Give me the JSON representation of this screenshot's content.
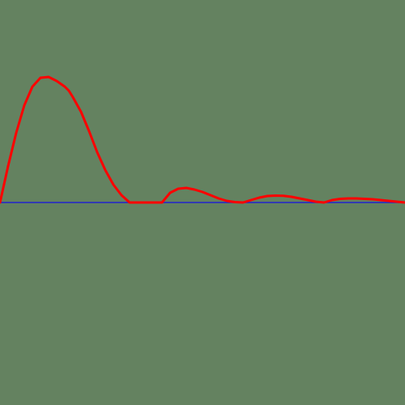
{
  "colors": {
    "background": "#648260",
    "curve": "#ff0000",
    "baseline": "#2222cc"
  },
  "chart_data": {
    "type": "line",
    "title": "",
    "xlabel": "",
    "ylabel": "",
    "grid": false,
    "legend": "none",
    "xlim": [
      0,
      5
    ],
    "ylim": [
      -2.5,
      2.5
    ],
    "baseline": {
      "y": 0
    },
    "series": [
      {
        "x": [
          0,
          0.1,
          0.2,
          0.3,
          0.4,
          0.5,
          0.6,
          0.7,
          0.8,
          0.85,
          0.9,
          1.0,
          1.1,
          1.2,
          1.3,
          1.4,
          1.5,
          1.6,
          1.7,
          1.8,
          1.9,
          2.0,
          2.1,
          2.2,
          2.3,
          2.4,
          2.5,
          2.6,
          2.7,
          2.8,
          2.9,
          3.0,
          3.1,
          3.2,
          3.3,
          3.4,
          3.5,
          3.6,
          3.7,
          3.8,
          3.9,
          4.0,
          4.1,
          4.2,
          4.3,
          4.4,
          4.5,
          4.6,
          4.7,
          4.8,
          4.9,
          5.0
        ],
        "y": [
          0,
          0.45,
          0.86,
          1.2,
          1.43,
          1.54,
          1.55,
          1.5,
          1.43,
          1.38,
          1.3,
          1.12,
          0.88,
          0.62,
          0.4,
          0.22,
          0.09,
          0,
          0,
          0,
          0,
          0,
          0.12,
          0.17,
          0.18,
          0.16,
          0.13,
          0.09,
          0.05,
          0.02,
          0.005,
          0,
          0.03,
          0.06,
          0.08,
          0.085,
          0.082,
          0.07,
          0.05,
          0.03,
          0.01,
          0,
          0.03,
          0.045,
          0.05,
          0.05,
          0.045,
          0.04,
          0.03,
          0.02,
          0.01,
          0
        ]
      }
    ]
  }
}
